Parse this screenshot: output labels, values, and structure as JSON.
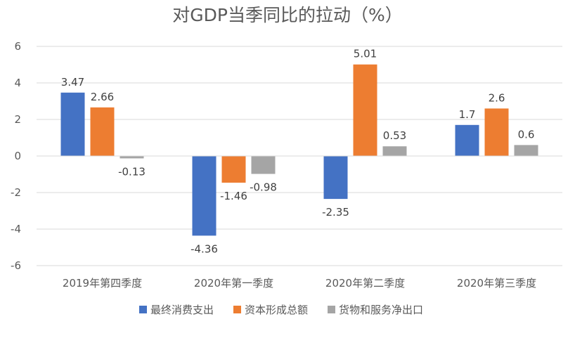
{
  "chart_data": {
    "type": "bar",
    "title": "对GDP当季同比的拉动（%）",
    "categories": [
      "2019年第四季度",
      "2020年第一季度",
      "2020年第二季度",
      "2020年第三季度"
    ],
    "series": [
      {
        "name": "最终消费支出",
        "color": "#4472C4",
        "values": [
          3.47,
          -4.36,
          -2.35,
          1.7
        ],
        "labels": [
          "3.47",
          "-4.36",
          "-2.35",
          "1.7"
        ]
      },
      {
        "name": "资本形成总额",
        "color": "#ED7D31",
        "values": [
          2.66,
          -1.46,
          5.01,
          2.6
        ],
        "labels": [
          "2.66",
          "-1.46",
          "5.01",
          "2.6"
        ]
      },
      {
        "name": "货物和服务净出口",
        "color": "#A5A5A5",
        "values": [
          -0.13,
          -0.98,
          0.53,
          0.6
        ],
        "labels": [
          "-0.13",
          "-0.98",
          "0.53",
          "0.6"
        ]
      }
    ],
    "ylim": [
      -6,
      6
    ],
    "yticks": [
      "6",
      "4",
      "2",
      "0",
      "-2",
      "-4",
      "-6"
    ],
    "grid": true,
    "legend_position": "bottom"
  }
}
